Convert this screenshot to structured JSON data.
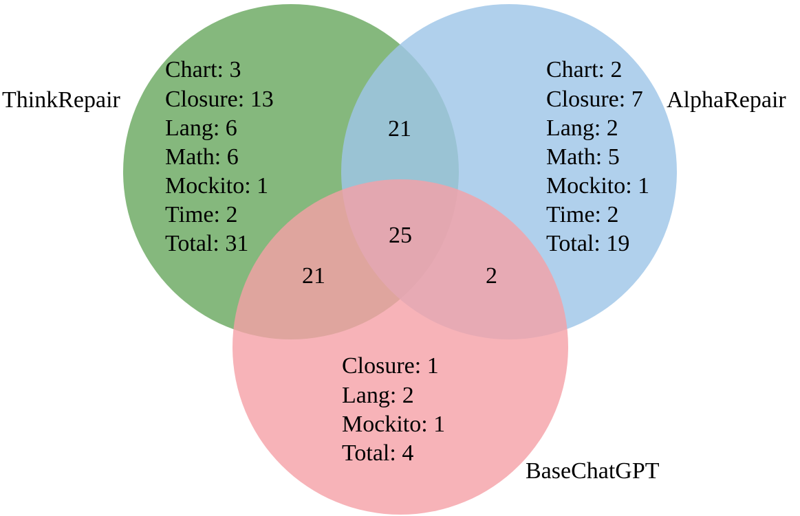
{
  "colors": {
    "think_repair": "#6aa860",
    "alpha_repair": "#9fc6e8",
    "base_chatgpt": "#f5a0a6",
    "text": "#000000",
    "background": "#ffffff"
  },
  "sets": {
    "think_repair": {
      "label": "ThinkRepair",
      "lines": [
        "Chart: 3",
        "Closure: 13",
        "Lang: 6",
        "Math: 6",
        "Mockito: 1",
        "Time: 2",
        "Total: 31"
      ]
    },
    "alpha_repair": {
      "label": "AlphaRepair",
      "lines": [
        "Chart: 2",
        "Closure: 7",
        "Lang: 2",
        "Math: 5",
        "Mockito: 1",
        "Time: 2",
        "Total: 19"
      ]
    },
    "base_chatgpt": {
      "label": "BaseChatGPT",
      "lines": [
        "Closure: 1",
        "Lang: 2",
        "Mockito: 1",
        "Total: 4"
      ]
    }
  },
  "overlaps": {
    "think_alpha": "21",
    "think_base": "21",
    "alpha_base": "2",
    "all_three": "25"
  }
}
